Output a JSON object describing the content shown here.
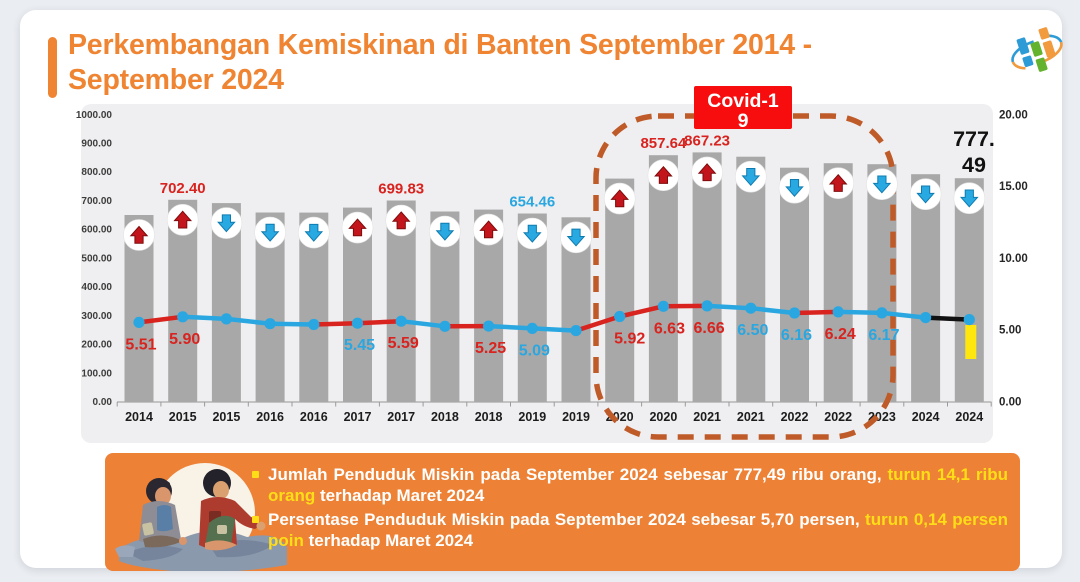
{
  "page": {
    "background": "#eaedf1"
  },
  "header": {
    "title_lines": [
      "Perkembangan Kemiskinan di Banten September 2014 -",
      "September 2024"
    ],
    "title_color": "#ef8432",
    "logo": "bps-logo"
  },
  "chart_data": {
    "type": "bar+line",
    "categories": [
      "2014",
      "2015",
      "2015",
      "2016",
      "2016",
      "2017",
      "2017",
      "2018",
      "2018",
      "2019",
      "2019",
      "2020",
      "2020",
      "2021",
      "2021",
      "2022",
      "2022",
      "2023",
      "2024",
      "2024"
    ],
    "left_axis": {
      "min": 0,
      "max": 1000,
      "tick_labels": [
        "0.00",
        "100.00",
        "200.00",
        "300.00",
        "400.00",
        "500.00",
        "600.00",
        "700.00",
        "800.00",
        "900.00",
        "1000.00"
      ]
    },
    "right_axis": {
      "min": 0,
      "max": 20,
      "tick_labels": [
        "0.00",
        "5.00",
        "10.00",
        "15.00",
        "20.00"
      ]
    },
    "grid": false,
    "plot_bg": "#efeff1",
    "colors": {
      "red": "#d8231f",
      "blue": "#2aa7e0",
      "black": "#111111"
    },
    "series": [
      {
        "name": "Jumlah Penduduk Miskin (ribu orang)",
        "type": "bar",
        "axis": "left",
        "color": "#a8a8a8",
        "values": [
          649.2,
          702.4,
          690.7,
          658.1,
          657.7,
          675.0,
          699.83,
          661.4,
          668.3,
          654.46,
          641.4,
          776.0,
          857.64,
          867.23,
          852.3,
          814.0,
          829.7,
          826.1,
          791.6,
          777.49
        ],
        "value_labels": {
          "1": "702.40",
          "6": "699.83",
          "9": "654.46",
          "12": "857.64",
          "13": "867.23"
        },
        "value_label_colors": {
          "1": "red",
          "6": "red",
          "9": "blue",
          "12": "red",
          "13": "red"
        }
      },
      {
        "name": "Persentase Penduduk Miskin (persen)",
        "type": "line",
        "axis": "right",
        "marker_color": "#2aa7e0",
        "values": [
          5.51,
          5.9,
          5.75,
          5.42,
          5.36,
          5.45,
          5.59,
          5.24,
          5.25,
          5.09,
          4.94,
          5.92,
          6.63,
          6.66,
          6.5,
          6.16,
          6.24,
          6.17,
          5.84,
          5.7
        ],
        "value_labels": {
          "0": "5.51",
          "1": "5.90",
          "5": "5.45",
          "6": "5.59",
          "8": "5.25",
          "9": "5.09",
          "11": "5.92",
          "12": "6.63",
          "13": "6.66",
          "14": "6.50",
          "15": "6.16",
          "16": "6.24",
          "17": "6.17"
        },
        "value_label_colors": {
          "0": "red",
          "1": "red",
          "5": "blue",
          "6": "red",
          "8": "red",
          "9": "blue",
          "11": "red",
          "12": "red",
          "13": "red",
          "14": "blue",
          "15": "blue",
          "16": "red",
          "17": "blue"
        },
        "segment_colors": [
          "red",
          "blue",
          "blue",
          "blue",
          "red",
          "red",
          "blue",
          "red",
          "blue",
          "blue",
          "red",
          "red",
          "red",
          "blue",
          "blue",
          "red",
          "blue",
          "blue",
          "black"
        ]
      }
    ],
    "change_arrows": {
      "directions": [
        "up",
        "up",
        "down",
        "down",
        "down",
        "up",
        "up",
        "down",
        "up",
        "down",
        "down",
        "up",
        "up",
        "up",
        "down",
        "down",
        "up",
        "down",
        "down",
        "down"
      ],
      "up_color": "#c3161c",
      "down_color": "#29a9e2"
    },
    "covid_annotation": {
      "lines": [
        "Covid-1",
        "9"
      ],
      "bg": "#f70d0d",
      "text_color": "#ffffff"
    },
    "covid_period_box": {
      "stroke": "#bf5b28"
    },
    "latest_point": {
      "label_lines": [
        "777.",
        "49"
      ],
      "label_color": "#111111",
      "marker_color": "#ffe60c"
    }
  },
  "summary_panel": {
    "background": "#ed8135",
    "bullet_color": "#ffdd17",
    "text_color": "#ffffff",
    "highlight_color": "#ffdd17",
    "bullets": [
      {
        "pre": "Jumlah Penduduk Miskin pada September 2024 sebesar 777,49 ribu orang, ",
        "highlight": "turun 14,1 ribu orang",
        "post": " terhadap Maret 2024"
      },
      {
        "pre": "Persentase Penduduk Miskin pada September 2024 sebesar 5,70 persen, ",
        "highlight": "turun 0,14 persen poin",
        "post": " terhadap Maret 2024"
      }
    ]
  }
}
